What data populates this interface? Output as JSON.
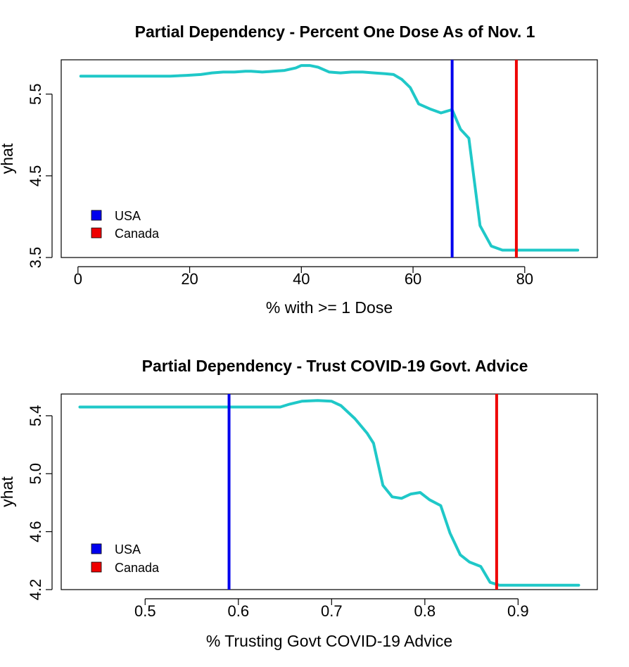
{
  "colors": {
    "curve": "#1fc8c8",
    "usa": "#0000ee",
    "canada": "#ee0000"
  },
  "chart_data": [
    {
      "type": "line",
      "title": "Partial Dependency - Percent One Dose As of Nov. 1",
      "xlabel": "% with >= 1 Dose",
      "ylabel": "yhat",
      "xlim": [
        -3,
        93
      ],
      "ylim": [
        3.5,
        5.92
      ],
      "xticks": [
        0,
        20,
        40,
        60,
        80
      ],
      "xtick_labels": [
        "0",
        "20",
        "40",
        "60",
        "80"
      ],
      "yticks": [
        3.5,
        4.5,
        5.5
      ],
      "ytick_labels": [
        "3.5",
        "4.5",
        "5.5"
      ],
      "grid": false,
      "legend_position": "bottom-left",
      "series": [
        {
          "x": [
            0.5,
            5,
            10,
            16.5,
            19.5,
            22,
            24,
            26,
            28,
            30,
            31,
            33,
            35,
            37,
            39,
            40,
            41.5,
            43,
            45,
            47,
            49,
            51,
            53,
            55,
            56.5,
            58,
            59.5,
            61,
            63,
            65,
            67,
            68.5,
            70,
            72,
            74,
            76,
            80,
            85,
            89.5
          ],
          "y": [
            5.72,
            5.72,
            5.72,
            5.72,
            5.73,
            5.74,
            5.76,
            5.77,
            5.77,
            5.78,
            5.78,
            5.77,
            5.78,
            5.79,
            5.82,
            5.85,
            5.85,
            5.83,
            5.77,
            5.76,
            5.77,
            5.77,
            5.76,
            5.75,
            5.74,
            5.68,
            5.58,
            5.38,
            5.32,
            5.27,
            5.31,
            5.07,
            4.96,
            3.89,
            3.64,
            3.59,
            3.59,
            3.59,
            3.59
          ]
        }
      ],
      "reference_lines": [
        {
          "name": "USA",
          "x": 67
        },
        {
          "name": "Canada",
          "x": 78.5
        }
      ],
      "legend": [
        "USA",
        "Canada"
      ]
    },
    {
      "type": "line",
      "title": "Partial Dependency - Trust COVID-19 Govt. Advice",
      "xlabel": "% Trusting Govt COVID-19 Advice",
      "ylabel": "yhat",
      "xlim": [
        0.41,
        0.985
      ],
      "ylim": [
        4.2,
        5.55
      ],
      "xticks": [
        0.5,
        0.6,
        0.7,
        0.8,
        0.9
      ],
      "xtick_labels": [
        "0.5",
        "0.6",
        "0.7",
        "0.8",
        "0.9"
      ],
      "yticks": [
        4.2,
        4.6,
        5.0,
        5.4
      ],
      "ytick_labels": [
        "4.2",
        "4.6",
        "5.0",
        "5.4"
      ],
      "grid": false,
      "legend_position": "bottom-left",
      "series": [
        {
          "x": [
            0.43,
            0.5,
            0.6,
            0.645,
            0.655,
            0.668,
            0.685,
            0.7,
            0.71,
            0.725,
            0.738,
            0.745,
            0.755,
            0.765,
            0.775,
            0.785,
            0.795,
            0.805,
            0.817,
            0.827,
            0.838,
            0.848,
            0.86,
            0.87,
            0.88,
            0.9,
            0.93,
            0.965
          ],
          "y": [
            5.46,
            5.46,
            5.46,
            5.46,
            5.48,
            5.5,
            5.505,
            5.5,
            5.47,
            5.38,
            5.28,
            5.21,
            4.92,
            4.84,
            4.83,
            4.86,
            4.87,
            4.82,
            4.78,
            4.59,
            4.44,
            4.39,
            4.36,
            4.25,
            4.23,
            4.23,
            4.23,
            4.23
          ]
        }
      ],
      "reference_lines": [
        {
          "name": "USA",
          "x": 0.59
        },
        {
          "name": "Canada",
          "x": 0.877
        }
      ],
      "legend": [
        "USA",
        "Canada"
      ]
    }
  ]
}
